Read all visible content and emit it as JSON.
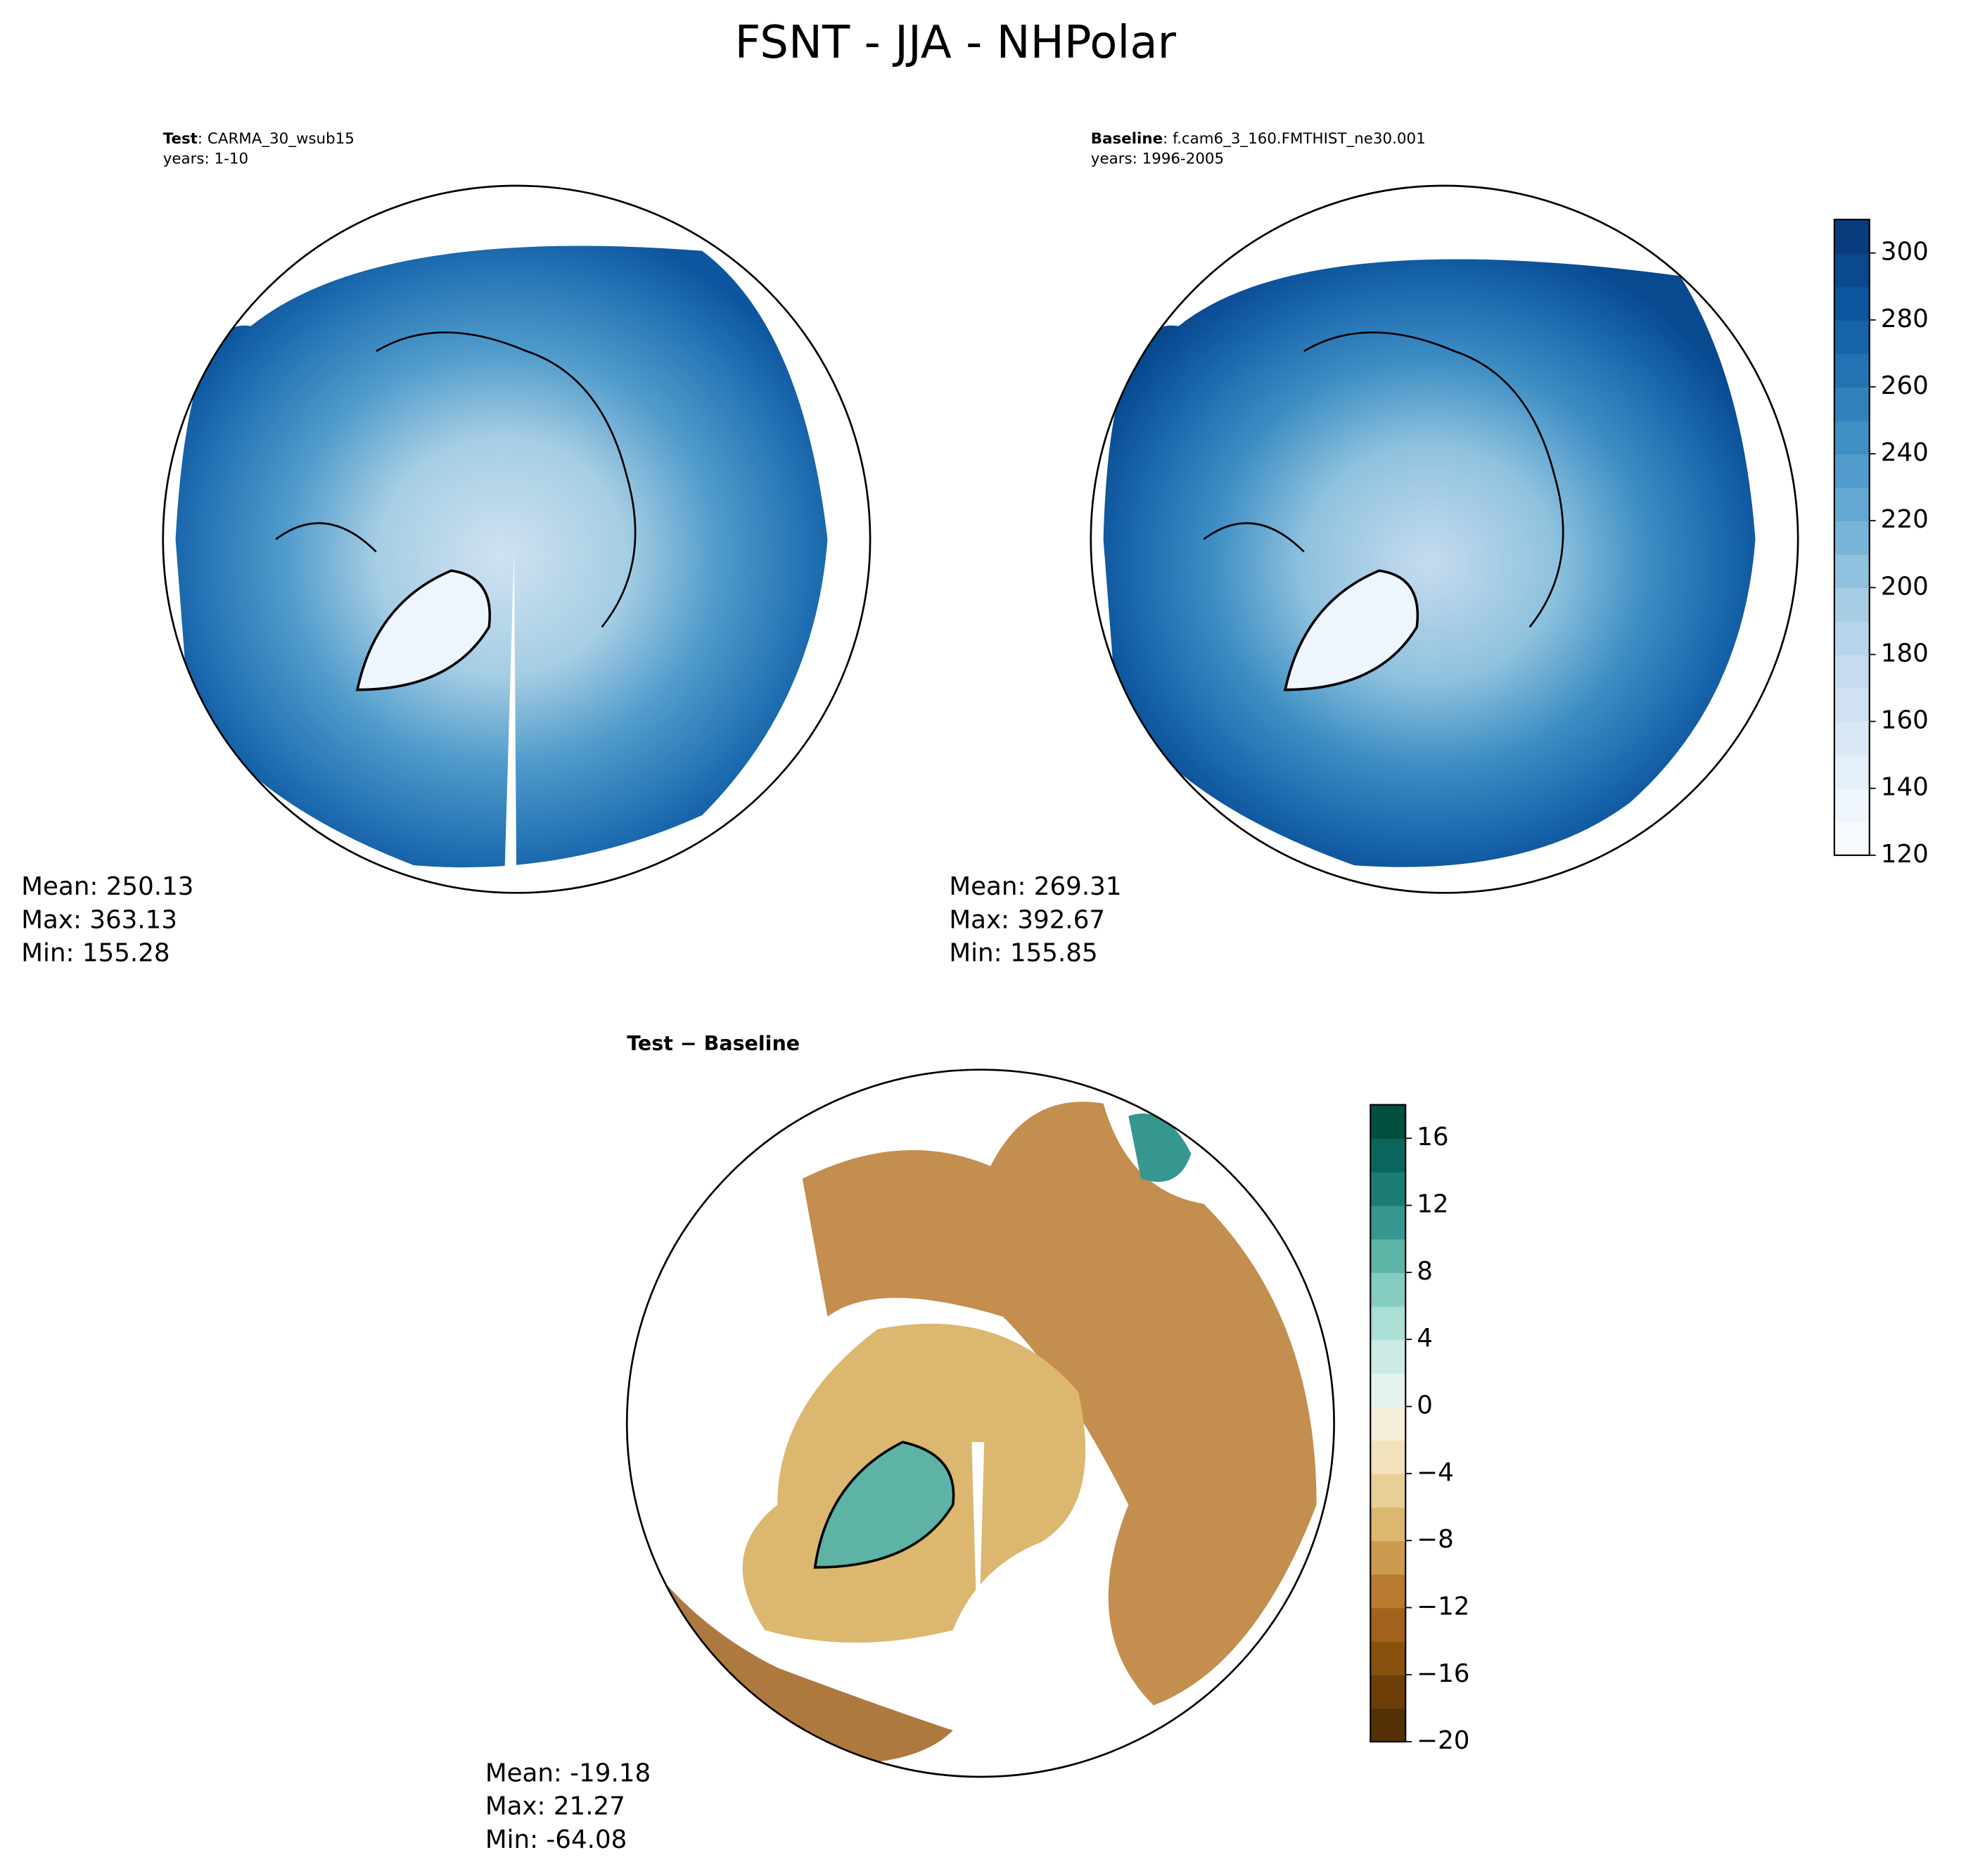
{
  "title": "FSNT - JJA - NHPolar",
  "panels": [
    {
      "label": "Test",
      "case": ": CARMA_30_wsub15",
      "years": "years: 1-10",
      "stats": [
        "Mean: 250.13",
        "Max: 363.13",
        "Min: 155.28"
      ]
    },
    {
      "label": "Baseline",
      "case": ": f.cam6_3_160.FMTHIST_ne30.001",
      "years": "years: 1996-2005",
      "stats": [
        "Mean: 269.31",
        "Max: 392.67",
        "Min: 155.85"
      ]
    },
    {
      "label": "Test − Baseline",
      "stats": [
        "Mean: -19.18",
        "Max: 21.27",
        "Min: -64.08"
      ]
    }
  ],
  "colorbars": [
    {
      "ylim": [
        120,
        310
      ],
      "yticks": [
        120,
        140,
        160,
        180,
        200,
        220,
        240,
        260,
        280,
        300
      ],
      "colors": [
        "#f7fbff",
        "#eef5fc",
        "#e4eff9",
        "#dae8f6",
        "#d0e2f2",
        "#c6dbef",
        "#b7d4ea",
        "#a5cde3",
        "#8fc2de",
        "#79b5d9",
        "#63a8d3",
        "#519ccc",
        "#3f8fc5",
        "#3181bd",
        "#2372b4",
        "#1764ab",
        "#0d569f",
        "#084990",
        "#083c7d"
      ]
    },
    {
      "ylim": [
        -20,
        18
      ],
      "yticks": [
        {
          "value": -20,
          "label": "−20"
        },
        {
          "value": -16,
          "label": "−16"
        },
        {
          "value": -12,
          "label": "−12"
        },
        {
          "value": -8,
          "label": "−8"
        },
        {
          "value": -4,
          "label": "−4"
        },
        0,
        4,
        8,
        12,
        16
      ],
      "colors": [
        "#543005",
        "#6d3e08",
        "#87500c",
        "#a0621c",
        "#b87a2f",
        "#cc9a4f",
        "#dbb76f",
        "#e8cf95",
        "#f2e2bb",
        "#f5efdc",
        "#e6f3f1",
        "#cdeae5",
        "#aadfd6",
        "#85cdc1",
        "#5db3a6",
        "#35978f",
        "#1c7d74",
        "#0a665d",
        "#01503f"
      ]
    }
  ]
}
